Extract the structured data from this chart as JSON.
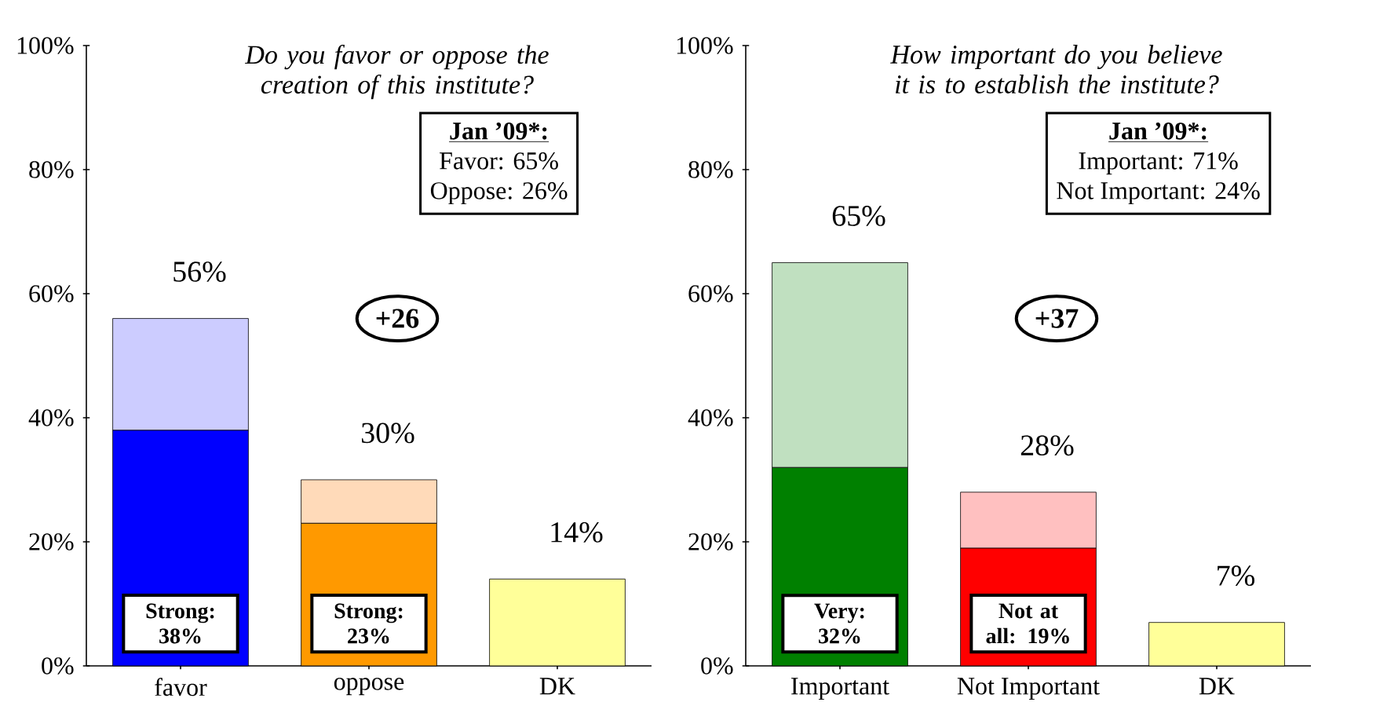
{
  "chart_data": [
    {
      "type": "bar",
      "title": "Do you favor or oppose the creation of this institute?",
      "categories": [
        "favor",
        "oppose",
        "DK"
      ],
      "stacked": true,
      "series": [
        {
          "colors": [
            "#0000ff",
            "#ff9900",
            "#ffff99"
          ],
          "values": [
            38,
            23,
            14
          ],
          "value_labels": [
            "Strong: 38%",
            "Strong: 23%",
            null
          ]
        },
        {
          "colors": [
            "#ccccff",
            "#ffdab9",
            "#ffff99"
          ],
          "values": [
            18,
            7,
            null
          ]
        }
      ],
      "totals": [
        "56%",
        "30%",
        "14%"
      ],
      "ylim": [
        0,
        100
      ],
      "yticks": [
        {
          "value": 0,
          "label": "0%"
        },
        {
          "value": 20,
          "label": "20%"
        },
        {
          "value": 40,
          "label": "40%"
        },
        {
          "value": 60,
          "label": "60%"
        },
        {
          "value": 80,
          "label": "80%"
        },
        {
          "value": 100,
          "label": "100%"
        }
      ],
      "annotations": [
        "Jan ’09*:",
        "Favor: 65%",
        "Oppose: 26%",
        "+26"
      ]
    },
    {
      "type": "bar",
      "title": "How important do you believe it is to establish the institute?",
      "categories": [
        "Important",
        "Not Important",
        "DK"
      ],
      "stacked": true,
      "series": [
        {
          "colors": [
            "#008000",
            "#ff0000",
            "#ffff99"
          ],
          "values": [
            32,
            19,
            7
          ],
          "value_labels": [
            "Very: 32%",
            "Not at all: 19%",
            null
          ]
        },
        {
          "colors": [
            "#c0e0c0",
            "#ffc0c0",
            "#ffff99"
          ],
          "values": [
            33,
            9,
            null
          ]
        }
      ],
      "totals": [
        "65%",
        "28%",
        "7%"
      ],
      "ylim": [
        0,
        100
      ],
      "yticks": [
        {
          "value": 0,
          "label": "0%"
        },
        {
          "value": 20,
          "label": "20%"
        },
        {
          "value": 40,
          "label": "40%"
        },
        {
          "value": 60,
          "label": "60%"
        },
        {
          "value": 80,
          "label": "80%"
        },
        {
          "value": 100,
          "label": "100%"
        }
      ],
      "annotations": [
        "Jan ’09*:",
        "Important: 71%",
        "Not Important: 24%",
        "+37"
      ]
    }
  ]
}
